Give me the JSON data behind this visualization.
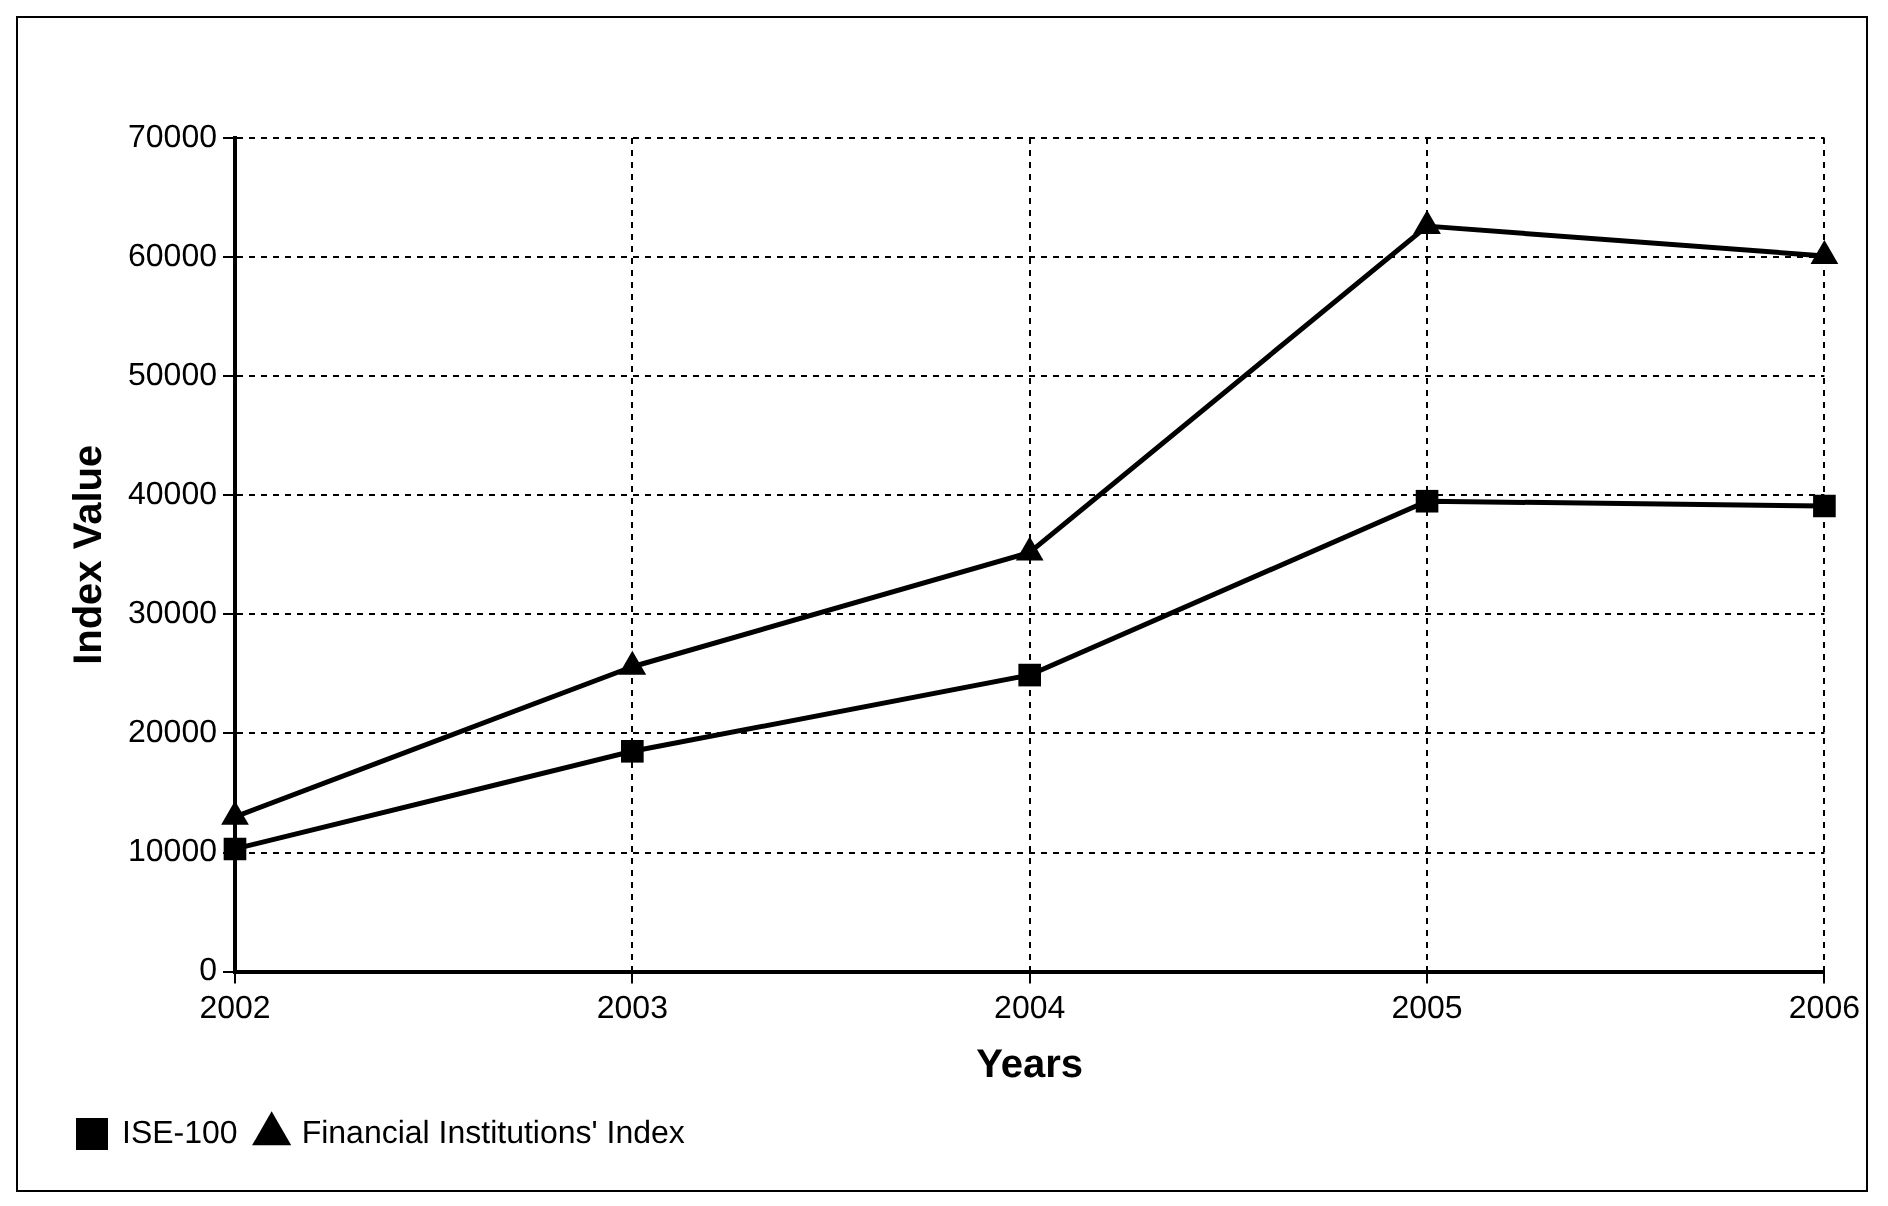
{
  "chart_data": {
    "type": "line",
    "xlabel": "Years",
    "ylabel": "Index Value",
    "categories": [
      "2002",
      "2003",
      "2004",
      "2005",
      "2006"
    ],
    "series": [
      {
        "name": "ISE-100",
        "color": "#000000",
        "marker": "square",
        "values": [
          10300,
          18500,
          24900,
          39500,
          39100
        ]
      },
      {
        "name": "Financial Institutions' Index",
        "color": "#000000",
        "marker": "triangle",
        "values": [
          13000,
          25600,
          35200,
          62600,
          60100
        ]
      }
    ],
    "ylim": [
      0,
      70000
    ],
    "yticks": [
      0,
      10000,
      20000,
      30000,
      40000,
      50000,
      60000,
      70000
    ],
    "grid": true,
    "line_style": "solid",
    "legend": "bottom left"
  }
}
